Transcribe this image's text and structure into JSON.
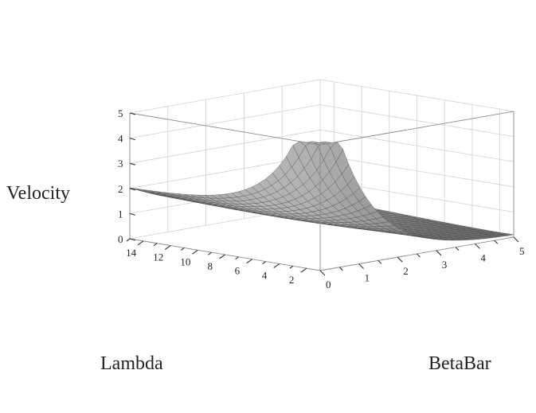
{
  "chart_data": {
    "type": "surface",
    "z_title": "Velocity",
    "x_title": "Lambda",
    "y_title": "BetaBar",
    "z_ticks": [
      "0",
      "1",
      "2",
      "3",
      "4",
      "5"
    ],
    "x_ticks": [
      "2",
      "4",
      "6",
      "8",
      "10",
      "12",
      "14"
    ],
    "y_ticks": [
      "0",
      "1",
      "2",
      "3",
      "4",
      "5"
    ],
    "zlim": [
      0,
      5
    ],
    "xlim": [
      1,
      15
    ],
    "ylim": [
      0,
      5
    ],
    "surface_color": "#9a9a9a",
    "mesh_color": "#4a4a4a",
    "box": true,
    "grid": true,
    "surface_corners": {
      "lambda_max_betabar_0": 2.0,
      "lambda_min_betabar_0": 8.0,
      "lambda_min_betabar_5": 0.0,
      "lambda_max_betabar_5": 2.0
    }
  }
}
